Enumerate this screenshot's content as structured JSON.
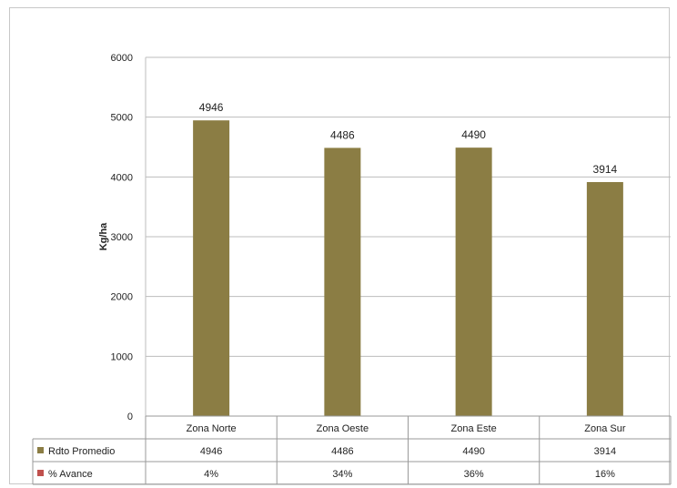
{
  "chart_data": {
    "type": "bar",
    "categories": [
      "Zona Norte",
      "Zona Oeste",
      "Zona Este",
      "Zona Sur"
    ],
    "series": [
      {
        "name": "Rdto Promedio",
        "values": [
          4946,
          4486,
          4490,
          3914
        ],
        "color": "#8b7d44",
        "plotted": true
      },
      {
        "name": "% Avance",
        "values": [
          "4%",
          "34%",
          "36%",
          "16%"
        ],
        "color": "#c0504d",
        "plotted": false
      }
    ],
    "title": "",
    "xlabel": "",
    "ylabel": "Kg/ha",
    "ylim": [
      0,
      6000
    ],
    "yticks": [
      0,
      1000,
      2000,
      3000,
      4000,
      5000,
      6000
    ],
    "data_labels": [
      "4946",
      "4486",
      "4490",
      "3914"
    ],
    "grid": true,
    "legend": "data-table"
  },
  "colors": {
    "bar": "#8b7d44",
    "grid": "#bdbdbd",
    "table_border": "#9a9a9a"
  }
}
